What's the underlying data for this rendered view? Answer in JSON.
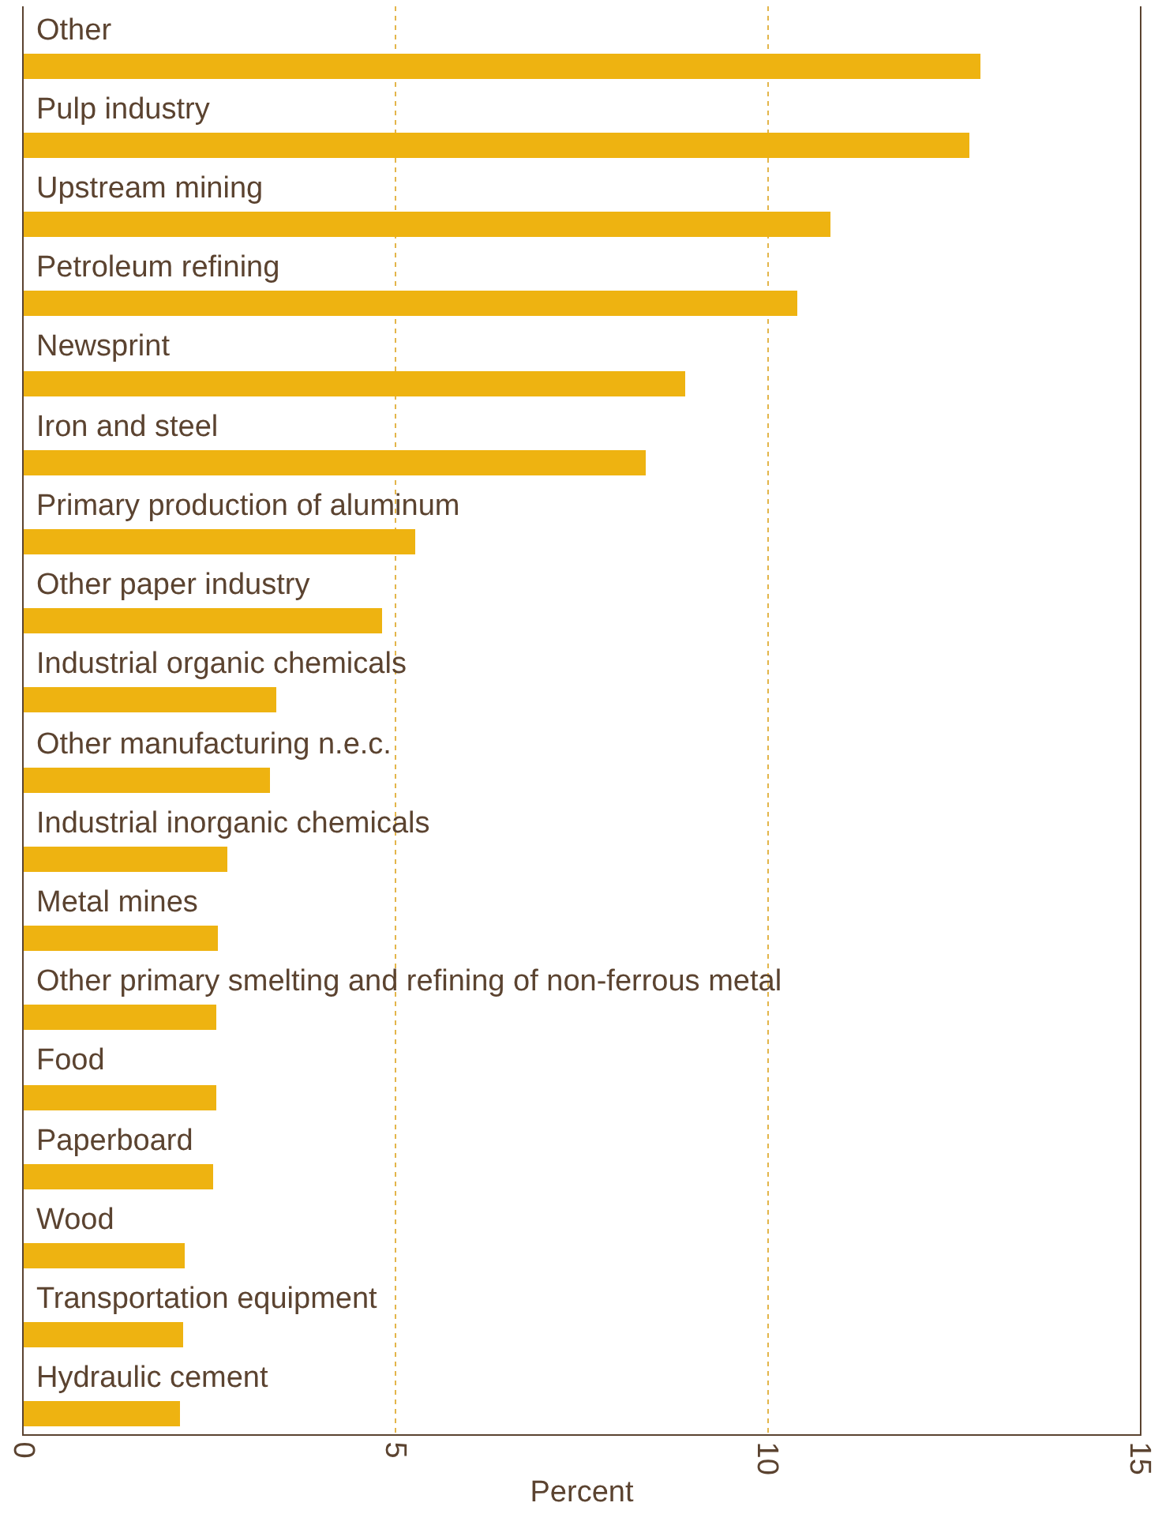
{
  "chart_data": {
    "type": "bar",
    "orientation": "horizontal",
    "xlabel": "Percent",
    "categories": [
      "Other",
      "Pulp industry",
      "Upstream mining",
      "Petroleum refining",
      "Newsprint",
      "Iron and steel",
      "Primary production of aluminum",
      "Other paper industry",
      "Industrial organic chemicals",
      "Other manufacturing n.e.c.",
      "Industrial inorganic chemicals",
      "Metal mines",
      "Other primary smelting and refining of non-ferrous metal",
      "Food",
      "Paperboard",
      "Wood",
      "Transportation equipment",
      "Hydraulic cement"
    ],
    "values": [
      12.85,
      12.7,
      10.84,
      10.4,
      8.88,
      8.35,
      5.27,
      4.81,
      3.4,
      3.31,
      2.74,
      2.62,
      2.59,
      2.59,
      2.55,
      2.17,
      2.15,
      2.11
    ],
    "color": "#eeb311",
    "xlim": [
      0,
      15
    ],
    "xticks": [
      0,
      5,
      10,
      15
    ],
    "grid": "x",
    "tick_labels": "x"
  }
}
